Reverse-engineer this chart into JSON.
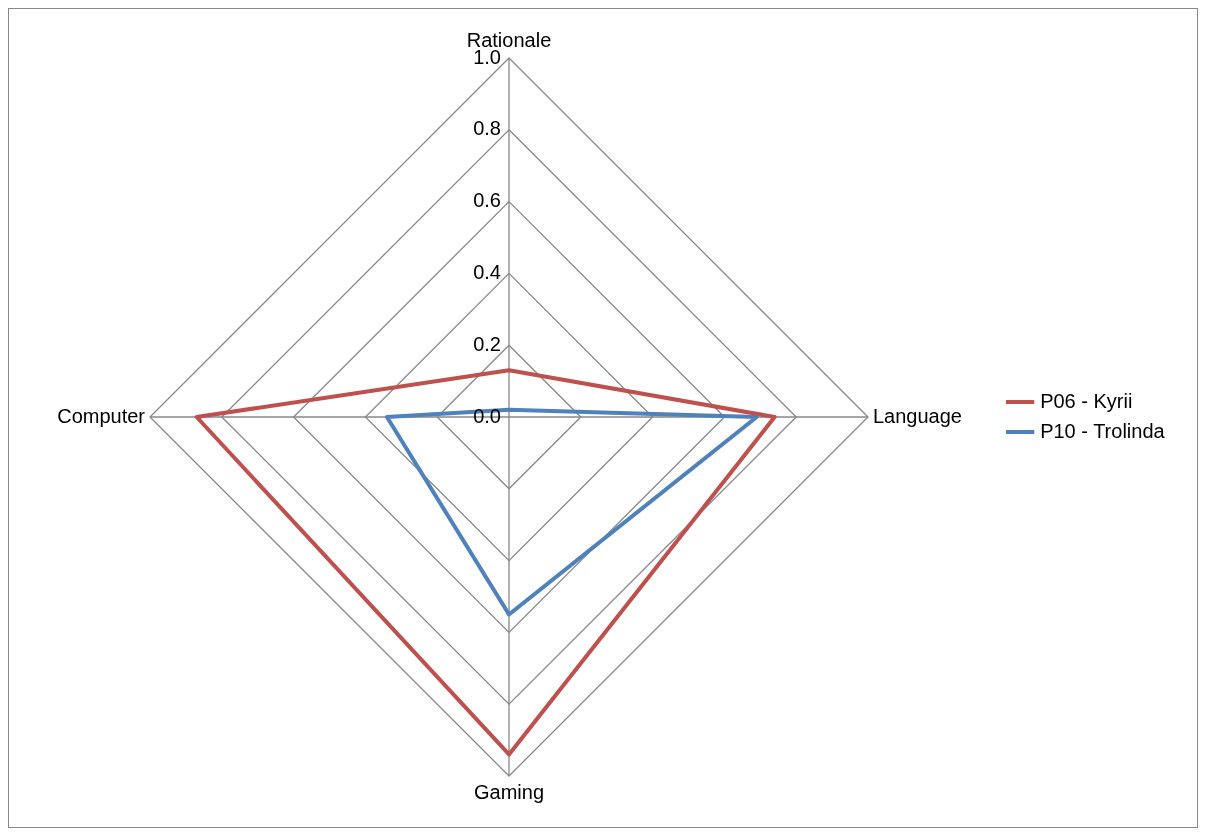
{
  "chart_data": {
    "type": "radar",
    "categories": [
      "Rationale",
      "Language",
      "Gaming",
      "Computer"
    ],
    "series": [
      {
        "name": "P06 - Kyrii",
        "color": "#c0504d",
        "values": [
          0.13,
          0.74,
          0.94,
          0.87
        ]
      },
      {
        "name": "P10 - Trolinda",
        "color": "#4f81bd",
        "values": [
          0.02,
          0.69,
          0.55,
          0.34
        ]
      }
    ],
    "ylim": [
      0,
      1
    ],
    "yticks": [
      {
        "value": 0,
        "label": "0.0"
      },
      {
        "value": 0.2,
        "label": "0.2"
      },
      {
        "value": 0.4,
        "label": "0.4"
      },
      {
        "value": 0.6,
        "label": "0.6"
      },
      {
        "value": 0.8,
        "label": "0.8"
      },
      {
        "value": 1,
        "label": "1.0"
      }
    ],
    "grid": true,
    "legend": "right",
    "marker": "none",
    "line_style": "solid"
  }
}
